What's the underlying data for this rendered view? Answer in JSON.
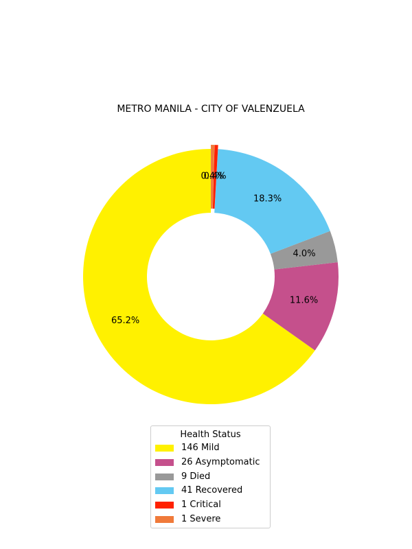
{
  "chart_data": {
    "type": "pie",
    "style": "donut",
    "title": "METRO MANILA - CITY OF VALENZUELA",
    "start_angle_deg": 90,
    "direction": "counterclockwise",
    "slices": [
      {
        "label": "Mild",
        "count_label": "146  Mild",
        "value": 146,
        "percent_label": "65.2%",
        "color": "#fff100",
        "explode": false
      },
      {
        "label": "Asymptomatic",
        "count_label": "26  Asymptomatic",
        "value": 26,
        "percent_label": "11.6%",
        "color": "#c5508c",
        "explode": false
      },
      {
        "label": "Died",
        "count_label": "9  Died",
        "value": 9,
        "percent_label": "4.0%",
        "color": "#999999",
        "explode": false
      },
      {
        "label": "Recovered",
        "count_label": "41  Recovered",
        "value": 41,
        "percent_label": "18.3%",
        "color": "#63c9f2",
        "explode": false
      },
      {
        "label": "Critical",
        "count_label": "1  Critical",
        "value": 1,
        "percent_label": "0.4%",
        "color": "#ff2200",
        "explode": true
      },
      {
        "label": "Severe",
        "count_label": "1  Severe",
        "value": 1,
        "percent_label": "0.4%",
        "color": "#f07a3a",
        "explode": true
      }
    ],
    "legend": {
      "title": "Health Status",
      "placement": "bottom-center"
    }
  }
}
